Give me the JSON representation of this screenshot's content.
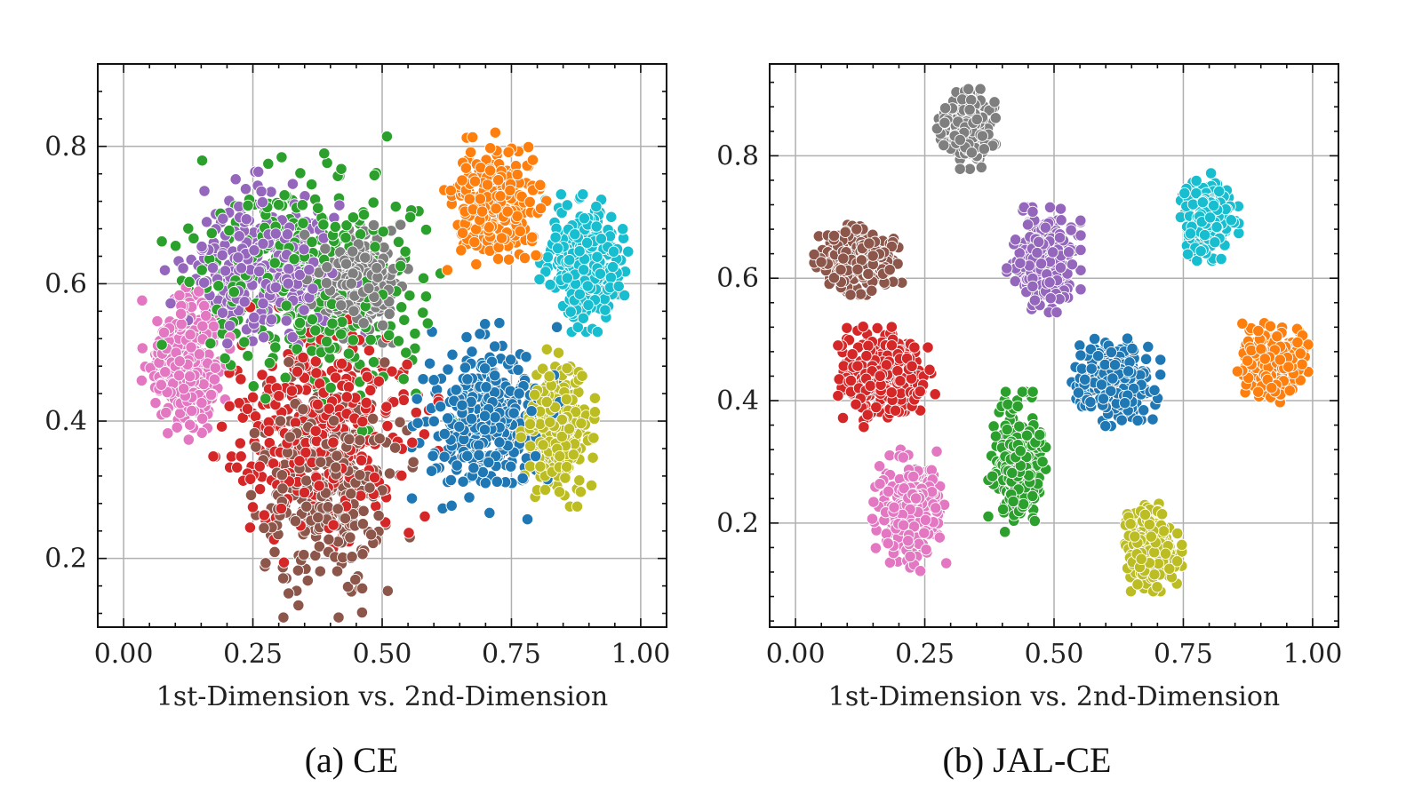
{
  "chart_data": [
    {
      "type": "scatter",
      "caption": "(a) CE",
      "xlabel": "1st-Dimension vs. 2nd-Dimension",
      "ylabel": "",
      "xlim": [
        -0.05,
        1.05
      ],
      "ylim": [
        0.1,
        0.92
      ],
      "xticks": [
        "0.00",
        "0.25",
        "0.50",
        "0.75",
        "1.00"
      ],
      "yticks": [
        "0.2",
        "0.4",
        "0.6",
        "0.8"
      ],
      "grid": true,
      "legend": "none",
      "series": [
        {
          "color": "#1f77b4",
          "center": [
            0.7,
            0.4
          ],
          "spread": [
            0.1,
            0.1
          ],
          "count": 340
        },
        {
          "color": "#ff7f0e",
          "center": [
            0.72,
            0.72
          ],
          "spread": [
            0.07,
            0.07
          ],
          "count": 320
        },
        {
          "color": "#2ca02c",
          "center": [
            0.36,
            0.6
          ],
          "spread": [
            0.2,
            0.15
          ],
          "count": 380
        },
        {
          "color": "#d62728",
          "center": [
            0.38,
            0.38
          ],
          "spread": [
            0.16,
            0.13
          ],
          "count": 380
        },
        {
          "color": "#9467bd",
          "center": [
            0.28,
            0.62
          ],
          "spread": [
            0.14,
            0.1
          ],
          "count": 340
        },
        {
          "color": "#8c564b",
          "center": [
            0.4,
            0.3
          ],
          "spread": [
            0.12,
            0.13
          ],
          "count": 320
        },
        {
          "color": "#e377c2",
          "center": [
            0.12,
            0.48
          ],
          "spread": [
            0.06,
            0.08
          ],
          "count": 330
        },
        {
          "color": "#7f7f7f",
          "center": [
            0.45,
            0.6
          ],
          "spread": [
            0.07,
            0.06
          ],
          "count": 300
        },
        {
          "color": "#bcbd22",
          "center": [
            0.84,
            0.39
          ],
          "spread": [
            0.05,
            0.08
          ],
          "count": 300
        },
        {
          "color": "#17becf",
          "center": [
            0.89,
            0.63
          ],
          "spread": [
            0.06,
            0.07
          ],
          "count": 320
        }
      ]
    },
    {
      "type": "scatter",
      "caption": "(b) JAL-CE",
      "xlabel": "1st-Dimension vs. 2nd-Dimension",
      "ylabel": "",
      "xlim": [
        -0.05,
        1.05
      ],
      "ylim": [
        0.03,
        0.95
      ],
      "xticks": [
        "0.00",
        "0.25",
        "0.50",
        "0.75",
        "1.00"
      ],
      "yticks": [
        "0.2",
        "0.4",
        "0.6",
        "0.8"
      ],
      "grid": true,
      "legend": "none",
      "series": [
        {
          "color": "#1f77b4",
          "center": [
            0.62,
            0.43
          ],
          "spread": [
            0.06,
            0.05
          ],
          "count": 320
        },
        {
          "color": "#ff7f0e",
          "center": [
            0.92,
            0.46
          ],
          "spread": [
            0.05,
            0.05
          ],
          "count": 320
        },
        {
          "color": "#2ca02c",
          "center": [
            0.43,
            0.3
          ],
          "spread": [
            0.04,
            0.08
          ],
          "count": 300
        },
        {
          "color": "#d62728",
          "center": [
            0.17,
            0.44
          ],
          "spread": [
            0.07,
            0.06
          ],
          "count": 320
        },
        {
          "color": "#9467bd",
          "center": [
            0.48,
            0.63
          ],
          "spread": [
            0.05,
            0.06
          ],
          "count": 300
        },
        {
          "color": "#8c564b",
          "center": [
            0.12,
            0.63
          ],
          "spread": [
            0.06,
            0.04
          ],
          "count": 300
        },
        {
          "color": "#e377c2",
          "center": [
            0.22,
            0.22
          ],
          "spread": [
            0.05,
            0.07
          ],
          "count": 300
        },
        {
          "color": "#7f7f7f",
          "center": [
            0.33,
            0.85
          ],
          "spread": [
            0.04,
            0.05
          ],
          "count": 280
        },
        {
          "color": "#bcbd22",
          "center": [
            0.69,
            0.16
          ],
          "spread": [
            0.04,
            0.05
          ],
          "count": 300
        },
        {
          "color": "#17becf",
          "center": [
            0.8,
            0.7
          ],
          "spread": [
            0.04,
            0.05
          ],
          "count": 300
        }
      ]
    }
  ]
}
